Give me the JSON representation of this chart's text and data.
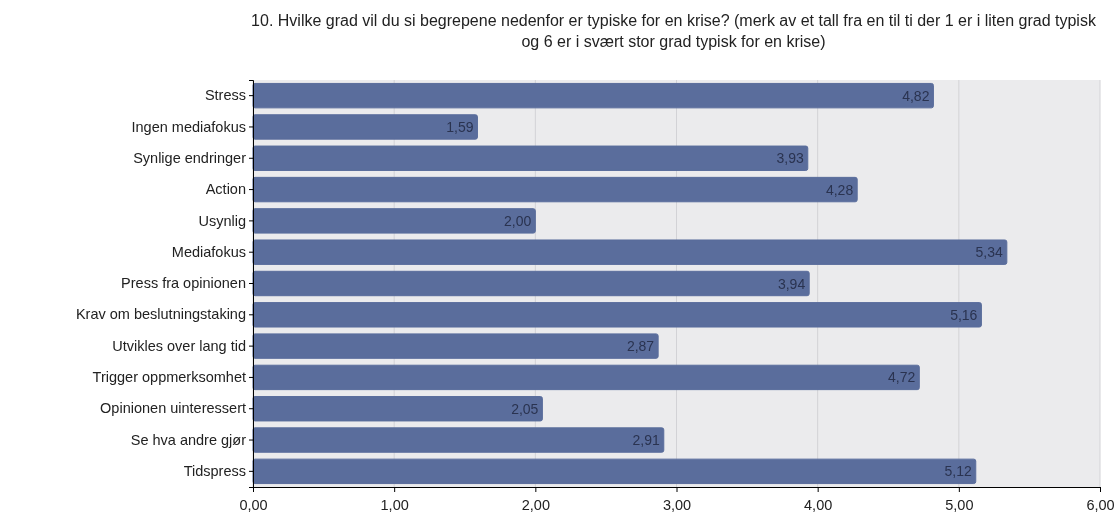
{
  "chart_data": {
    "type": "bar",
    "orientation": "horizontal",
    "title": "10. Hvilke grad vil du si begrepene nedenfor er typiske for en krise? (merk av et tall fra en til ti der 1 er i liten grad typisk og 6 er i svært stor grad typisk for en krise)",
    "categories": [
      "Stress",
      "Ingen mediafokus",
      "Synlige endringer",
      "Action",
      "Usynlig",
      "Mediafokus",
      "Press fra opinionen",
      "Krav om beslutningstaking",
      "Utvikles over lang tid",
      "Trigger oppmerksomhet",
      "Opinionen uinteressert",
      "Se hva andre gjør",
      "Tidspress"
    ],
    "values": [
      4.82,
      1.59,
      3.93,
      4.28,
      2.0,
      5.34,
      3.94,
      5.16,
      2.87,
      4.72,
      2.05,
      2.91,
      5.12
    ],
    "value_labels": [
      "4,82",
      "1,59",
      "3,93",
      "4,28",
      "2,00",
      "5,34",
      "3,94",
      "5,16",
      "2,87",
      "4,72",
      "2,05",
      "2,91",
      "5,12"
    ],
    "color": "#5a6d9c",
    "xlim": [
      0,
      6
    ],
    "xticks": [
      {
        "value": 0,
        "label": "0,00"
      },
      {
        "value": 1,
        "label": "1,00"
      },
      {
        "value": 2,
        "label": "2,00"
      },
      {
        "value": 3,
        "label": "3,00"
      },
      {
        "value": 4,
        "label": "4,00"
      },
      {
        "value": 5,
        "label": "5,00"
      },
      {
        "value": 6,
        "label": "6,00"
      }
    ],
    "grid": "x"
  }
}
